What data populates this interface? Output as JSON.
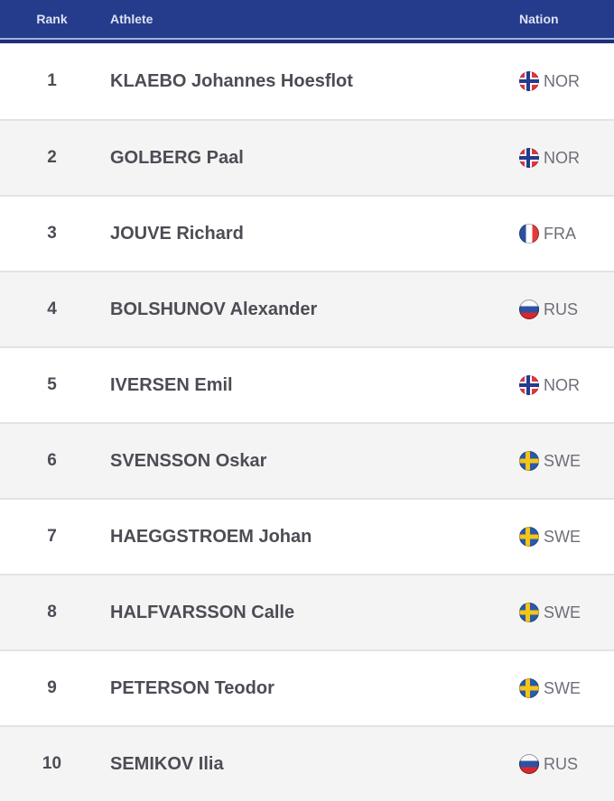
{
  "table": {
    "headers": {
      "rank": "Rank",
      "athlete": "Athlete",
      "nation": "Nation"
    },
    "rows": [
      {
        "rank": "1",
        "athlete": "KLAEBO Johannes Hoesflot",
        "nation": "NOR",
        "flag": "NOR"
      },
      {
        "rank": "2",
        "athlete": "GOLBERG Paal",
        "nation": "NOR",
        "flag": "NOR"
      },
      {
        "rank": "3",
        "athlete": "JOUVE Richard",
        "nation": "FRA",
        "flag": "FRA"
      },
      {
        "rank": "4",
        "athlete": "BOLSHUNOV Alexander",
        "nation": "RUS",
        "flag": "RUS"
      },
      {
        "rank": "5",
        "athlete": "IVERSEN Emil",
        "nation": "NOR",
        "flag": "NOR"
      },
      {
        "rank": "6",
        "athlete": "SVENSSON Oskar",
        "nation": "SWE",
        "flag": "SWE"
      },
      {
        "rank": "7",
        "athlete": "HAEGGSTROEM Johan",
        "nation": "SWE",
        "flag": "SWE"
      },
      {
        "rank": "8",
        "athlete": "HALFVARSSON Calle",
        "nation": "SWE",
        "flag": "SWE"
      },
      {
        "rank": "9",
        "athlete": "PETERSON Teodor",
        "nation": "SWE",
        "flag": "SWE"
      },
      {
        "rank": "10",
        "athlete": "SEMIKOV Ilia",
        "nation": "RUS",
        "flag": "RUS"
      }
    ],
    "colors": {
      "header_bg": "#253c8c",
      "header_text": "#dde2f2",
      "divider_light_blue": "#a2b2d8",
      "divider_dark_blue": "#1d2f7c",
      "row_alt_bg": "#f4f4f4",
      "row_separator": "#e3e3e3",
      "athlete_text": "#4c4c55",
      "nation_text": "#6e6e78"
    }
  }
}
